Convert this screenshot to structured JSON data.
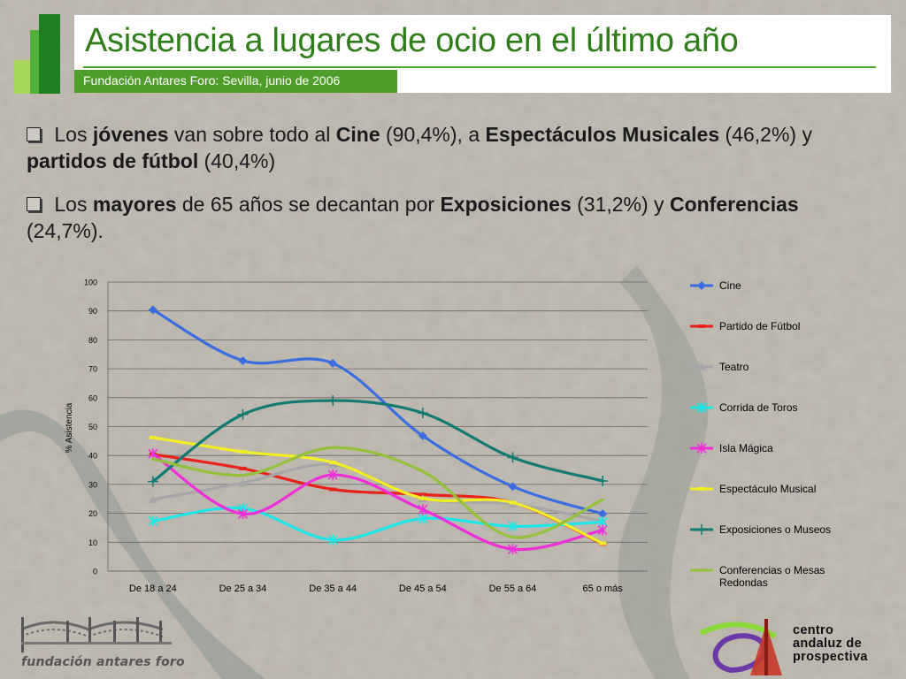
{
  "header": {
    "title": "Asistencia a lugares de ocio en el último año",
    "subtitle": "Fundación Antares Foro: Sevilla, junio de 2006"
  },
  "bullets": [
    {
      "parts": [
        {
          "t": "Los ",
          "b": false
        },
        {
          "t": "jóvenes",
          "b": true
        },
        {
          "t": " van sobre todo al ",
          "b": false
        },
        {
          "t": "Cine",
          "b": true
        },
        {
          "t": " (90,4%), a ",
          "b": false
        },
        {
          "t": "Espectáculos Musicales",
          "b": true
        },
        {
          "t": " (46,2%) y ",
          "b": false
        },
        {
          "t": "partidos de fútbol",
          "b": true
        },
        {
          "t": " (40,4%)",
          "b": false
        }
      ]
    },
    {
      "parts": [
        {
          "t": "Los ",
          "b": false
        },
        {
          "t": "mayores",
          "b": true
        },
        {
          "t": " de 65 años se decantan por ",
          "b": false
        },
        {
          "t": "Exposiciones",
          "b": true
        },
        {
          "t": " (31,2%) y ",
          "b": false
        },
        {
          "t": "Conferencias",
          "b": true
        },
        {
          "t": " (24,7%).",
          "b": false
        }
      ]
    }
  ],
  "chart_data": {
    "type": "line",
    "ylabel": "% Asistencia",
    "xlabel": "",
    "ylim": [
      0,
      100
    ],
    "yticks": [
      "0",
      "10",
      "20",
      "30",
      "40",
      "50",
      "60",
      "70",
      "80",
      "90",
      "100"
    ],
    "categories": [
      "De 18 a 24",
      "De 25  a 34",
      "De 35 a 44",
      "De 45 a 54",
      "De 55 a 64",
      "65 o más"
    ],
    "grid": true,
    "legend_position": "right",
    "series": [
      {
        "name": "Cine",
        "color": "#3c6ddf",
        "marker": "diamond",
        "values": [
          90.4,
          72.8,
          71.9,
          46.8,
          29.3,
          19.8
        ]
      },
      {
        "name": "Partido de Fútbol",
        "color": "#e8211b",
        "marker": "dash",
        "values": [
          40.4,
          35.5,
          28.3,
          26.5,
          23.7,
          9.4
        ]
      },
      {
        "name": "Teatro",
        "color": "#a6a6a6",
        "marker": "triangle",
        "values": [
          24.8,
          30.5,
          36.8,
          25.1,
          23.2,
          17.3
        ]
      },
      {
        "name": "Corrida de Toros",
        "color": "#1fe6e6",
        "marker": "x",
        "values": [
          17.3,
          21.7,
          10.8,
          18.2,
          15.5,
          17.0
        ]
      },
      {
        "name": "Isla Mágica",
        "color": "#ee2fd9",
        "marker": "x",
        "values": [
          40.6,
          19.8,
          33.3,
          21.3,
          7.6,
          14.2
        ]
      },
      {
        "name": "Espectáculo Musical",
        "color": "#f2ee26",
        "marker": "dash",
        "values": [
          46.2,
          41.3,
          37.6,
          25.2,
          23.7,
          9.6
        ]
      },
      {
        "name": "Exposiciones o Museos",
        "color": "#137a73",
        "marker": "plus",
        "values": [
          31.0,
          54.2,
          59.0,
          54.7,
          39.3,
          31.2
        ]
      },
      {
        "name": "Conferencias o Mesas Redondas",
        "color": "#94c13b",
        "marker": "none",
        "values": [
          38.8,
          33.2,
          42.7,
          34.5,
          11.8,
          24.7
        ]
      }
    ]
  },
  "footer": {
    "left_logo_text": "fundación antares foro",
    "right_logo_lines": [
      "centro",
      "andaluz de",
      "prospectiva"
    ]
  }
}
